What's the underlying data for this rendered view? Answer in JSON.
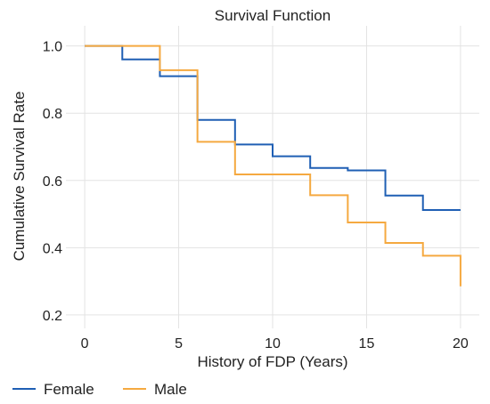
{
  "chart_data": {
    "type": "line",
    "step": true,
    "title": "Survival Function",
    "xlabel": "History of FDP (Years)",
    "ylabel": "Cumulative Survival Rate",
    "xlim": [
      -1,
      21
    ],
    "ylim": [
      0.16,
      1.06
    ],
    "xticks": [
      0,
      5,
      10,
      15,
      20
    ],
    "xtick_labels": [
      "0",
      "5",
      "10",
      "15",
      "20"
    ],
    "yticks": [
      0.2,
      0.4,
      0.6,
      0.8,
      1.0
    ],
    "ytick_labels": [
      "0.2",
      "0.4",
      "0.6",
      "0.8",
      "1.0"
    ],
    "grid": true,
    "legend_position": "bottom-left",
    "series": [
      {
        "name": "Female",
        "color": "#1f5fb4",
        "x": [
          0,
          2,
          4,
          6,
          8,
          10,
          12,
          14,
          16,
          18,
          20
        ],
        "y": [
          1.0,
          0.96,
          0.91,
          0.78,
          0.707,
          0.672,
          0.637,
          0.63,
          0.555,
          0.512,
          0.512
        ]
      },
      {
        "name": "Male",
        "color": "#f5a940",
        "x": [
          0,
          4,
          6,
          8,
          12,
          14,
          16,
          18,
          20
        ],
        "y": [
          1.0,
          0.928,
          0.715,
          0.618,
          0.556,
          0.475,
          0.414,
          0.376,
          0.285
        ]
      }
    ]
  }
}
